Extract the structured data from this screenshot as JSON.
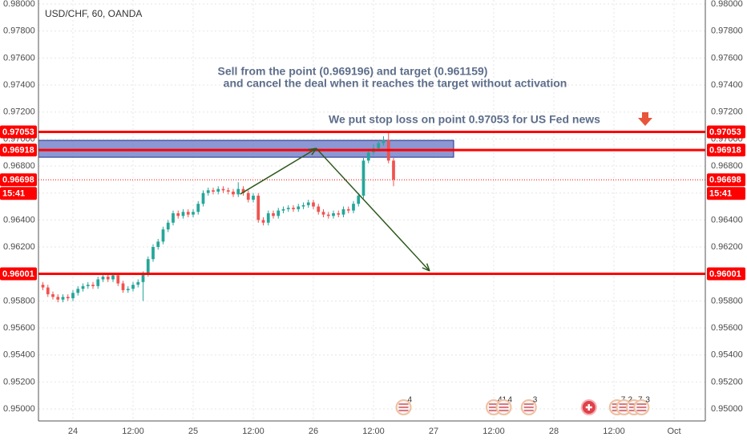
{
  "chart_data": {
    "type": "candlestick",
    "title": "USD/CHF, 60, OANDA",
    "annotations": [
      "Sell from the point (0.969196) and target (0.961159)",
      "and cancel the deal when it reaches the target without activation",
      "We put stop loss on point 0.97053 for US Fed news"
    ],
    "x": [
      -6,
      -5,
      -4,
      -3,
      -2,
      -1,
      0,
      1,
      2,
      3,
      4,
      5,
      6,
      7,
      8,
      9,
      10,
      11,
      12,
      13,
      14,
      15,
      16,
      17,
      18,
      19,
      20,
      21,
      22,
      23,
      24,
      25,
      26,
      27,
      28,
      29,
      30,
      31,
      32,
      33,
      34,
      35,
      36,
      37,
      38,
      39,
      40,
      41,
      42,
      43,
      44,
      45,
      46,
      47,
      48,
      49,
      50,
      51,
      52,
      53,
      54,
      55,
      56,
      57,
      58,
      59,
      60,
      61,
      62,
      63,
      64
    ],
    "open": [
      0.9592,
      0.959,
      0.9585,
      0.9583,
      0.9581,
      0.9583,
      0.9582,
      0.9586,
      0.9589,
      0.9591,
      0.9592,
      0.9591,
      0.9596,
      0.9598,
      0.9596,
      0.9599,
      0.9593,
      0.9588,
      0.9589,
      0.9592,
      0.9594,
      0.96,
      0.9611,
      0.962,
      0.9624,
      0.9633,
      0.9638,
      0.9645,
      0.9643,
      0.9646,
      0.9644,
      0.9646,
      0.9652,
      0.966,
      0.9662,
      0.9661,
      0.9663,
      0.9662,
      0.9661,
      0.9659,
      0.9663,
      0.966,
      0.9655,
      0.9658,
      0.964,
      0.9638,
      0.9645,
      0.9643,
      0.9647,
      0.9648,
      0.9649,
      0.9648,
      0.965,
      0.9651,
      0.9653,
      0.965,
      0.9646,
      0.9644,
      0.9643,
      0.9645,
      0.9644,
      0.9648,
      0.9647,
      0.9652,
      0.9658,
      0.9684,
      0.969,
      0.9693,
      0.9697,
      0.9699,
      0.9684
    ],
    "high": [
      0.9594,
      0.9592,
      0.9587,
      0.9585,
      0.9585,
      0.9585,
      0.9588,
      0.9591,
      0.9593,
      0.9594,
      0.9594,
      0.9598,
      0.96,
      0.96,
      0.9601,
      0.9601,
      0.9595,
      0.9591,
      0.9594,
      0.9596,
      0.9602,
      0.9613,
      0.9622,
      0.9626,
      0.9635,
      0.964,
      0.9647,
      0.9647,
      0.9648,
      0.9648,
      0.9648,
      0.9654,
      0.9662,
      0.9664,
      0.9664,
      0.9665,
      0.9665,
      0.9664,
      0.9663,
      0.9668,
      0.9665,
      0.9662,
      0.966,
      0.966,
      0.9642,
      0.9647,
      0.9647,
      0.9649,
      0.965,
      0.9651,
      0.9651,
      0.9652,
      0.9653,
      0.9655,
      0.9655,
      0.9652,
      0.9648,
      0.9646,
      0.9647,
      0.9647,
      0.965,
      0.965,
      0.9654,
      0.966,
      0.9686,
      0.9692,
      0.9696,
      0.9699,
      0.9702,
      0.9705,
      0.9686
    ],
    "low": [
      0.9588,
      0.9583,
      0.9581,
      0.9579,
      0.9579,
      0.958,
      0.958,
      0.9584,
      0.9587,
      0.9589,
      0.9589,
      0.9589,
      0.9594,
      0.9594,
      0.9594,
      0.9591,
      0.9586,
      0.9586,
      0.9587,
      0.959,
      0.958,
      0.9598,
      0.9609,
      0.9618,
      0.9622,
      0.9631,
      0.9636,
      0.9641,
      0.9641,
      0.9642,
      0.9642,
      0.9644,
      0.965,
      0.9658,
      0.9659,
      0.9659,
      0.966,
      0.9659,
      0.9657,
      0.9657,
      0.9658,
      0.9653,
      0.9653,
      0.9638,
      0.9636,
      0.9636,
      0.9641,
      0.9641,
      0.9645,
      0.9646,
      0.9646,
      0.9646,
      0.9648,
      0.9649,
      0.9648,
      0.9644,
      0.9642,
      0.9641,
      0.9641,
      0.9642,
      0.9642,
      0.9645,
      0.9645,
      0.965,
      0.9656,
      0.9682,
      0.9688,
      0.9691,
      0.9695,
      0.9682,
      0.9665
    ],
    "close": [
      0.959,
      0.9585,
      0.9583,
      0.9581,
      0.9583,
      0.9582,
      0.9586,
      0.9589,
      0.9591,
      0.9592,
      0.9591,
      0.9596,
      0.9598,
      0.9596,
      0.9599,
      0.9593,
      0.9588,
      0.9589,
      0.9592,
      0.9594,
      0.96,
      0.9611,
      0.962,
      0.9624,
      0.9633,
      0.9638,
      0.9645,
      0.9643,
      0.9646,
      0.9644,
      0.9646,
      0.9652,
      0.966,
      0.9662,
      0.9661,
      0.9663,
      0.9662,
      0.9661,
      0.9659,
      0.9663,
      0.966,
      0.9655,
      0.9658,
      0.964,
      0.9638,
      0.9645,
      0.9643,
      0.9647,
      0.9648,
      0.9649,
      0.9648,
      0.965,
      0.9651,
      0.9653,
      0.965,
      0.9646,
      0.9644,
      0.9643,
      0.9645,
      0.9644,
      0.9648,
      0.9647,
      0.9652,
      0.9658,
      0.9684,
      0.969,
      0.9693,
      0.9697,
      0.9699,
      0.9684,
      0.967
    ],
    "up_color": "#26a69a",
    "down_color": "#ef5350",
    "xlim": [
      -6.88,
      126.24
    ],
    "ylim": [
      0.94911,
      0.9803
    ],
    "xticks": [
      {
        "value": 0,
        "label": "24"
      },
      {
        "value": 12,
        "label": "12:00"
      },
      {
        "value": 24,
        "label": "25"
      },
      {
        "value": 36,
        "label": "12:00"
      },
      {
        "value": 48,
        "label": "26"
      },
      {
        "value": 60,
        "label": "12:00"
      },
      {
        "value": 72,
        "label": "27"
      },
      {
        "value": 84,
        "label": "12:00"
      },
      {
        "value": 96,
        "label": "28"
      },
      {
        "value": 108,
        "label": "12:00"
      },
      {
        "value": 120,
        "label": "Oct"
      }
    ],
    "yticks": [
      {
        "value": 0.95,
        "label": "0.95000"
      },
      {
        "value": 0.952,
        "label": "0.95200"
      },
      {
        "value": 0.954,
        "label": "0.95400"
      },
      {
        "value": 0.956,
        "label": "0.95600"
      },
      {
        "value": 0.958,
        "label": "0.95800"
      },
      {
        "value": 0.96,
        "label": "0.96000"
      },
      {
        "value": 0.962,
        "label": "0.96200"
      },
      {
        "value": 0.964,
        "label": "0.96400"
      },
      {
        "value": 0.966,
        "label": "0.96600"
      },
      {
        "value": 0.968,
        "label": "0.96800"
      },
      {
        "value": 0.97,
        "label": "0.97000"
      },
      {
        "value": 0.972,
        "label": "0.97200"
      },
      {
        "value": 0.974,
        "label": "0.97400"
      },
      {
        "value": 0.976,
        "label": "0.97600"
      },
      {
        "value": 0.978,
        "label": "0.97800"
      },
      {
        "value": 0.98,
        "label": "0.98000"
      }
    ],
    "grid": true,
    "levels": [
      {
        "value": 0.97053,
        "label": "0.97053"
      },
      {
        "value": 0.96918,
        "label": "0.96918"
      },
      {
        "value": 0.96001,
        "label": "0.96001"
      }
    ],
    "level_color": "#ff0000",
    "last_price": {
      "value": 0.96698,
      "label": "0.96698"
    },
    "countdown": "15:41",
    "zone": {
      "x_end": 76,
      "top": 0.9699,
      "bottom": 0.96865,
      "color": "#6674c4"
    },
    "arrow": {
      "x": [
        33.4,
        48.6,
        71.2
      ],
      "y": [
        0.96592,
        0.9693,
        0.96022
      ],
      "color": "#2e5a1e"
    },
    "events": [
      {
        "x": 66,
        "label": "4"
      },
      {
        "x": 84,
        "label": "41"
      },
      {
        "x": 86,
        "label": "4"
      },
      {
        "x": 91,
        "label": "3"
      },
      {
        "x": 103,
        "label": null
      },
      {
        "x": 108.6,
        "label": "7"
      },
      {
        "x": 110,
        "label": "2"
      },
      {
        "x": 112,
        "label": "7"
      },
      {
        "x": 113.5,
        "label": "3"
      }
    ]
  }
}
